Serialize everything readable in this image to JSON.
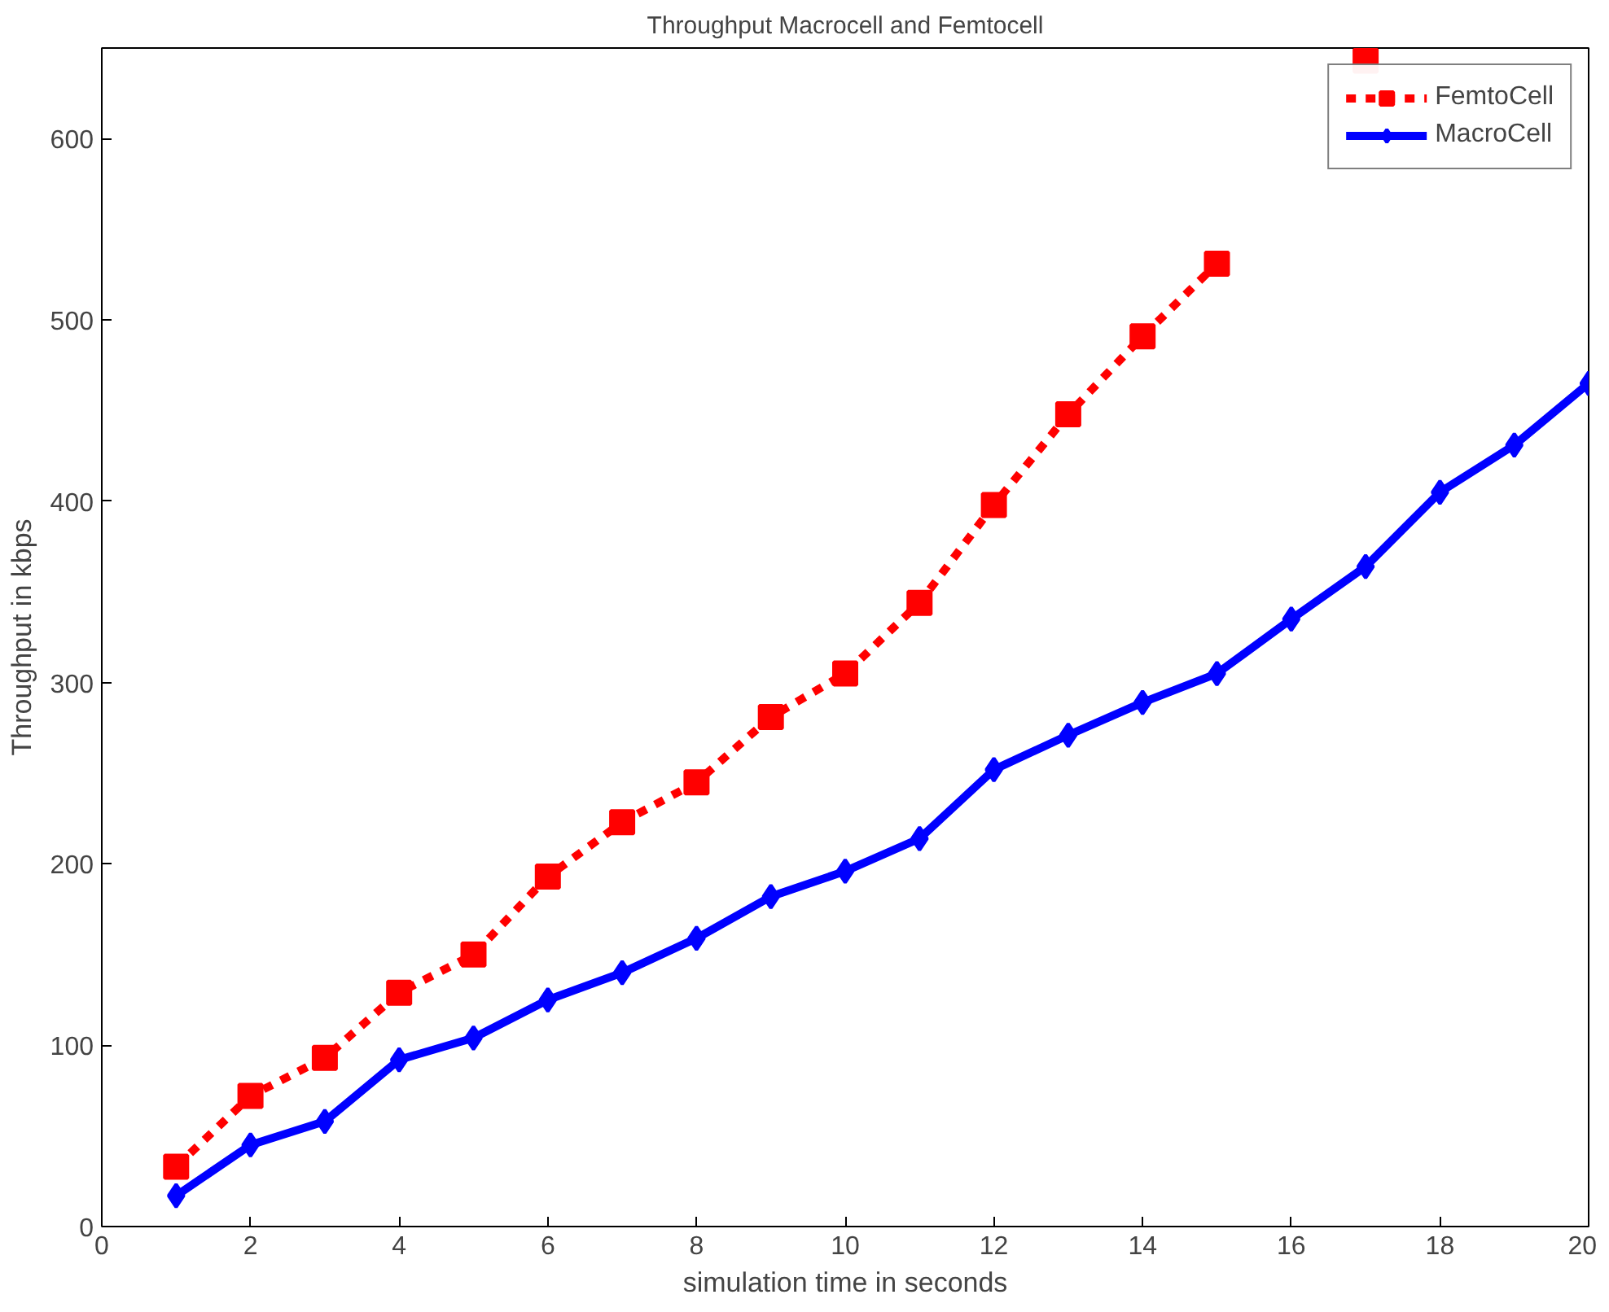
{
  "chart_data": {
    "type": "line",
    "title": "Throughput Macrocell and Femtocell",
    "xlabel": "simulation time in seconds",
    "ylabel": "Throughput in kbps",
    "x": [
      1,
      2,
      3,
      4,
      5,
      6,
      7,
      8,
      9,
      10,
      11,
      12,
      13,
      14,
      15,
      16,
      17,
      18,
      19,
      20
    ],
    "series": [
      {
        "name": "FemtoCell",
        "color": "#ff0000",
        "marker": "square",
        "line_style": "dashed",
        "values": [
          33,
          72,
          93,
          129,
          150,
          193,
          223,
          245,
          281,
          305,
          344,
          398,
          448,
          491,
          531,
          null,
          643,
          null,
          null,
          null
        ]
      },
      {
        "name": "MacroCell",
        "color": "#0000ff",
        "marker": "diamond",
        "line_style": "solid",
        "values": [
          17,
          45,
          58,
          92,
          104,
          125,
          140,
          159,
          182,
          196,
          214,
          252,
          271,
          289,
          305,
          335,
          364,
          405,
          431,
          465
        ]
      }
    ],
    "xlim": [
      0,
      20
    ],
    "ylim": [
      0,
      650
    ],
    "xticks": [
      0,
      2,
      4,
      6,
      8,
      10,
      12,
      14,
      16,
      18,
      20
    ],
    "yticks": [
      0,
      100,
      200,
      300,
      400,
      500,
      600
    ],
    "grid": false,
    "legend": "top right"
  }
}
